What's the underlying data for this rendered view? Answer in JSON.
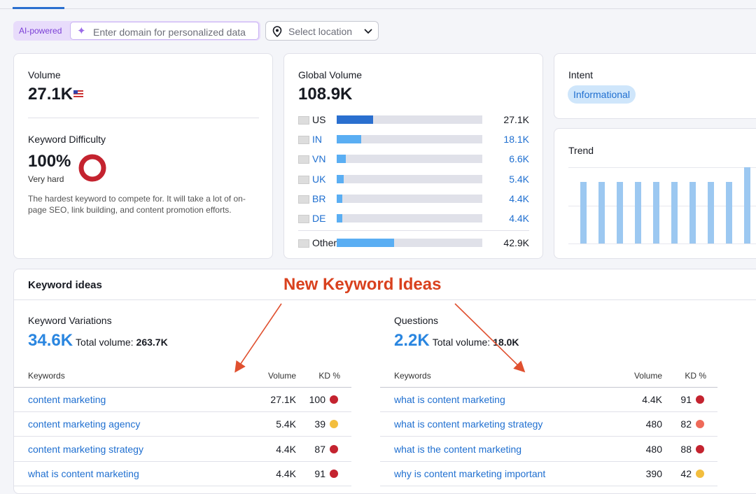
{
  "filters": {
    "ai_badge": "AI-powered",
    "domain_placeholder": "Enter domain for personalized data",
    "location_placeholder": "Select location"
  },
  "volume": {
    "label": "Volume",
    "value": "27.1K"
  },
  "difficulty": {
    "label": "Keyword Difficulty",
    "value": "100%",
    "level": "Very hard",
    "description": "The hardest keyword to compete for. It will take a lot of on-page SEO, link building, and content promotion efforts."
  },
  "global_volume": {
    "label": "Global Volume",
    "total": 108900,
    "total_label": "108.9K",
    "rows": [
      {
        "country": "US",
        "value": 27100,
        "value_label": "27.1K"
      },
      {
        "country": "IN",
        "value": 18100,
        "value_label": "18.1K"
      },
      {
        "country": "VN",
        "value": 6600,
        "value_label": "6.6K"
      },
      {
        "country": "UK",
        "value": 5400,
        "value_label": "5.4K"
      },
      {
        "country": "BR",
        "value": 4400,
        "value_label": "4.4K"
      },
      {
        "country": "DE",
        "value": 4400,
        "value_label": "4.4K"
      }
    ],
    "other": {
      "country": "Other",
      "value": 42900,
      "value_label": "42.9K"
    }
  },
  "intent": {
    "label": "Intent",
    "value": "Informational"
  },
  "trend": {
    "label": "Trend",
    "ylim": [
      0,
      100
    ],
    "values": [
      81,
      81,
      81,
      81,
      81,
      81,
      81,
      81,
      81,
      100
    ]
  },
  "keyword_ideas": {
    "title": "Keyword ideas",
    "annotation": "New Keyword Ideas",
    "variations": {
      "label": "Keyword Variations",
      "count": "34.6K",
      "total_label": "Total volume:",
      "total": "263.7K",
      "columns": [
        "Keywords",
        "Volume",
        "KD %"
      ],
      "rows": [
        [
          "content marketing",
          "27.1K",
          "100"
        ],
        [
          "content marketing agency",
          "5.4K",
          "39"
        ],
        [
          "content marketing strategy",
          "4.4K",
          "87"
        ],
        [
          "what is content marketing",
          "4.4K",
          "91"
        ]
      ]
    },
    "questions": {
      "label": "Questions",
      "count": "2.2K",
      "total_label": "Total volume:",
      "total": "18.0K",
      "columns": [
        "Keywords",
        "Volume",
        "KD %"
      ],
      "rows": [
        [
          "what is content marketing",
          "4.4K",
          "91"
        ],
        [
          "what is content marketing strategy",
          "480",
          "82"
        ],
        [
          "what is the content marketing",
          "480",
          "88"
        ],
        [
          "why is content marketing important",
          "390",
          "42"
        ]
      ]
    }
  }
}
